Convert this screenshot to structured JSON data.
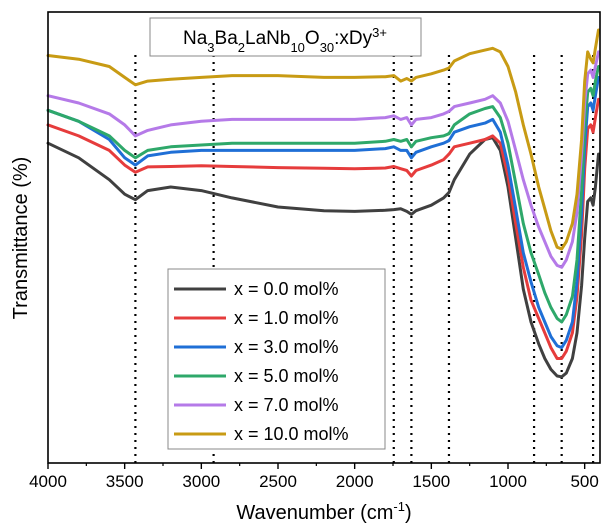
{
  "chart_data": {
    "type": "line",
    "title_parts": [
      {
        "t": "Na",
        "s": "n"
      },
      {
        "t": "3",
        "s": "sub"
      },
      {
        "t": "Ba",
        "s": "n"
      },
      {
        "t": "2",
        "s": "sub"
      },
      {
        "t": "LaNb",
        "s": "n"
      },
      {
        "t": "10",
        "s": "sub"
      },
      {
        "t": "O",
        "s": "n"
      },
      {
        "t": "30",
        "s": "sub"
      },
      {
        "t": ":xDy",
        "s": "n"
      },
      {
        "t": "3+",
        "s": "sup"
      }
    ],
    "xlabel_main": "Wavenumber (cm",
    "xlabel_sup": "-1",
    "xlabel_close": ")",
    "ylabel": "Transmittance (%)",
    "xlim": [
      4000,
      400
    ],
    "ylim": [
      0,
      100
    ],
    "x_ticks": [
      4000,
      3500,
      3000,
      2500,
      2000,
      1500,
      1000,
      500
    ],
    "x_tick_labels": [
      "4000",
      "3500",
      "3000",
      "2500",
      "2000",
      "1500",
      "1000",
      "500"
    ],
    "reference_lines": [
      3430,
      2920,
      1745,
      1630,
      1385,
      830,
      650,
      445
    ],
    "legend_position": "lower-left",
    "x": [
      4000,
      3800,
      3600,
      3500,
      3430,
      3350,
      3200,
      3000,
      2800,
      2500,
      2200,
      2000,
      1800,
      1745,
      1700,
      1660,
      1630,
      1600,
      1500,
      1420,
      1385,
      1350,
      1250,
      1150,
      1100,
      1050,
      1000,
      950,
      900,
      850,
      800,
      760,
      720,
      680,
      650,
      620,
      580,
      550,
      520,
      500,
      480,
      460,
      445,
      430,
      410
    ],
    "series": [
      {
        "name": "x = 0.0 mol%",
        "color": "#404040",
        "y": [
          69,
          65,
          59,
          55,
          53.5,
          56,
          57,
          56,
          54,
          51.5,
          50.5,
          50.3,
          50.6,
          50.8,
          51,
          50.3,
          49.5,
          50.5,
          52,
          54,
          55.5,
          59,
          66,
          70,
          70.5,
          67,
          57,
          43,
          29,
          20,
          14,
          10,
          7,
          5.2,
          5,
          6,
          10,
          17,
          30,
          43,
          53,
          54,
          52,
          57,
          66
        ]
      },
      {
        "name": "x = 1.0 mol%",
        "color": "#e63c3c",
        "y": [
          74,
          71,
          67,
          63,
          61,
          62.5,
          62.6,
          62.8,
          62.6,
          62.3,
          62.1,
          62,
          62.2,
          62.6,
          62,
          61.5,
          60,
          61.5,
          63,
          64.5,
          66,
          68,
          69,
          70,
          71,
          69,
          60,
          47,
          35,
          26,
          21,
          17,
          13,
          10,
          10,
          12,
          17,
          27,
          44,
          62,
          73,
          74,
          72,
          76,
          81
        ]
      },
      {
        "name": "x = 3.0 mol%",
        "color": "#1f6fd6",
        "y": [
          78,
          75,
          70,
          65,
          63,
          65.5,
          66.5,
          67,
          67,
          67,
          67,
          67,
          67.5,
          68,
          67,
          67,
          65,
          66.5,
          68,
          69,
          69.7,
          72,
          73.5,
          74.5,
          75.5,
          72,
          63,
          51,
          39,
          31,
          24,
          20,
          16,
          13.5,
          13,
          15,
          20,
          31,
          50,
          68,
          79,
          80,
          78,
          82,
          87
        ]
      },
      {
        "name": "x = 5.0 mol%",
        "color": "#2ea86a",
        "y": [
          78,
          75,
          71,
          67,
          65,
          67,
          68,
          68.5,
          69,
          69,
          69,
          69,
          69.5,
          70,
          69.5,
          70,
          68,
          69.5,
          70.5,
          71,
          71.6,
          74,
          77,
          78.5,
          79,
          76,
          69,
          58,
          47,
          39,
          33,
          28,
          24,
          21,
          20,
          22,
          27,
          37,
          56,
          73,
          83,
          84,
          82,
          86,
          90
        ]
      },
      {
        "name": "x = 7.0 mol%",
        "color": "#b57ae8",
        "y": [
          82,
          80,
          77,
          74,
          71,
          72.5,
          74,
          75,
          75.5,
          75.5,
          75.5,
          75.5,
          76,
          76.5,
          75.5,
          76,
          74,
          75.5,
          76,
          77,
          77.7,
          79,
          80,
          81,
          82,
          80,
          75,
          67,
          59,
          52,
          46,
          42,
          38,
          35.5,
          35,
          37,
          42,
          50,
          66,
          80,
          88,
          89,
          87,
          90,
          94
        ]
      },
      {
        "name": "x = 10.0 mol%",
        "color": "#c89b14",
        "y": [
          93,
          92,
          90,
          87,
          85,
          86,
          86.5,
          87,
          87.5,
          87.5,
          87,
          87,
          87.2,
          87.5,
          86,
          86.7,
          86,
          87,
          88,
          89,
          89.6,
          91.5,
          93.5,
          94.5,
          95,
          94,
          90,
          83,
          74,
          66,
          57,
          51,
          45,
          40.5,
          40,
          42,
          47,
          55,
          70,
          86,
          94,
          92,
          91,
          95,
          100
        ]
      }
    ]
  }
}
